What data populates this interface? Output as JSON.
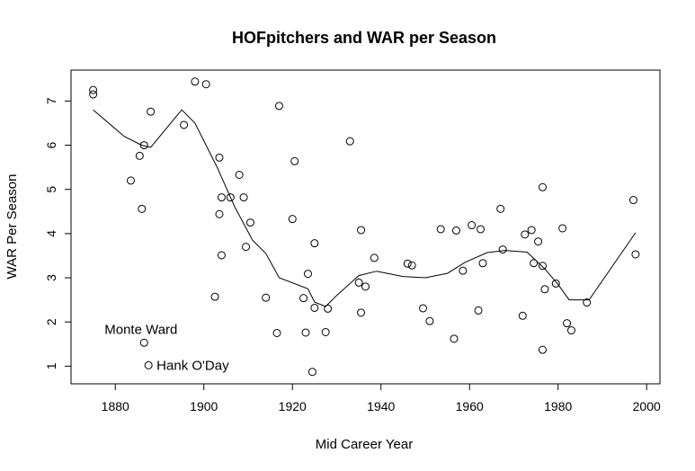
{
  "chart_data": {
    "type": "scatter",
    "title": "HOFpitchers and WAR per Season",
    "xlabel": "Mid Career Year",
    "ylabel": "WAR Per Season",
    "xlim": [
      1870,
      2003
    ],
    "ylim": [
      0.6,
      7.7
    ],
    "x_ticks": [
      1880,
      1900,
      1920,
      1940,
      1960,
      1980,
      2000
    ],
    "y_ticks": [
      1,
      2,
      3,
      4,
      5,
      6,
      7
    ],
    "grid": false,
    "annotations": [
      {
        "text": "Monte Ward",
        "x": 1886.5,
        "y": 1.53
      },
      {
        "text": "Hank O'Day",
        "x": 1887.5,
        "y": 1.02
      }
    ],
    "points": [
      [
        1875,
        7.25
      ],
      [
        1875,
        7.15
      ],
      [
        1883.5,
        5.2
      ],
      [
        1885.5,
        5.76
      ],
      [
        1886,
        4.56
      ],
      [
        1886.5,
        6.0
      ],
      [
        1888,
        6.76
      ],
      [
        1886.5,
        1.53
      ],
      [
        1887.5,
        1.02
      ],
      [
        1895.5,
        6.46
      ],
      [
        1898,
        7.44
      ],
      [
        1900.5,
        7.38
      ],
      [
        1902.5,
        2.57
      ],
      [
        1903.5,
        5.72
      ],
      [
        1903.5,
        4.44
      ],
      [
        1904,
        4.82
      ],
      [
        1904,
        3.51
      ],
      [
        1906,
        4.82
      ],
      [
        1908,
        5.33
      ],
      [
        1909,
        4.82
      ],
      [
        1909.5,
        3.7
      ],
      [
        1910.5,
        4.25
      ],
      [
        1914,
        2.55
      ],
      [
        1916.5,
        1.75
      ],
      [
        1917,
        6.89
      ],
      [
        1920,
        4.33
      ],
      [
        1920.5,
        5.64
      ],
      [
        1922.5,
        2.54
      ],
      [
        1923,
        1.76
      ],
      [
        1923.5,
        3.09
      ],
      [
        1924.5,
        0.87
      ],
      [
        1925,
        2.32
      ],
      [
        1925,
        3.78
      ],
      [
        1927.5,
        1.77
      ],
      [
        1928,
        2.3
      ],
      [
        1933,
        6.09
      ],
      [
        1935,
        2.89
      ],
      [
        1935.5,
        4.08
      ],
      [
        1935.5,
        2.21
      ],
      [
        1936.5,
        2.8
      ],
      [
        1938.5,
        3.45
      ],
      [
        1946,
        3.32
      ],
      [
        1947,
        3.28
      ],
      [
        1949.5,
        2.31
      ],
      [
        1951,
        2.02
      ],
      [
        1953.5,
        4.1
      ],
      [
        1956.5,
        1.62
      ],
      [
        1957,
        4.07
      ],
      [
        1958.5,
        3.16
      ],
      [
        1960.5,
        4.19
      ],
      [
        1962,
        2.26
      ],
      [
        1962.5,
        4.1
      ],
      [
        1963,
        3.33
      ],
      [
        1967,
        4.56
      ],
      [
        1967.5,
        3.64
      ],
      [
        1972,
        2.14
      ],
      [
        1972.5,
        3.98
      ],
      [
        1974,
        4.08
      ],
      [
        1974.5,
        3.33
      ],
      [
        1975.5,
        3.82
      ],
      [
        1976.5,
        5.05
      ],
      [
        1976.5,
        3.27
      ],
      [
        1976.5,
        1.37
      ],
      [
        1977,
        2.74
      ],
      [
        1979.5,
        2.87
      ],
      [
        1981,
        4.12
      ],
      [
        1982,
        1.97
      ],
      [
        1983,
        1.81
      ],
      [
        1986.5,
        2.44
      ],
      [
        1997,
        4.76
      ],
      [
        1997.5,
        3.53
      ]
    ],
    "smooth_line": [
      [
        1875,
        6.8
      ],
      [
        1882,
        6.2
      ],
      [
        1886,
        6.0
      ],
      [
        1888,
        5.95
      ],
      [
        1895,
        6.8
      ],
      [
        1898,
        6.5
      ],
      [
        1903,
        5.5
      ],
      [
        1907,
        4.6
      ],
      [
        1911,
        3.85
      ],
      [
        1914,
        3.55
      ],
      [
        1917,
        3.0
      ],
      [
        1923.5,
        2.75
      ],
      [
        1925,
        2.45
      ],
      [
        1927.5,
        2.35
      ],
      [
        1930,
        2.6
      ],
      [
        1935,
        3.05
      ],
      [
        1939,
        3.15
      ],
      [
        1945,
        3.03
      ],
      [
        1950,
        3.0
      ],
      [
        1955,
        3.1
      ],
      [
        1959,
        3.35
      ],
      [
        1964,
        3.57
      ],
      [
        1968,
        3.62
      ],
      [
        1973,
        3.58
      ],
      [
        1977,
        3.2
      ],
      [
        1980,
        2.85
      ],
      [
        1982.5,
        2.5
      ],
      [
        1987,
        2.5
      ],
      [
        1997.5,
        4.02
      ]
    ]
  }
}
